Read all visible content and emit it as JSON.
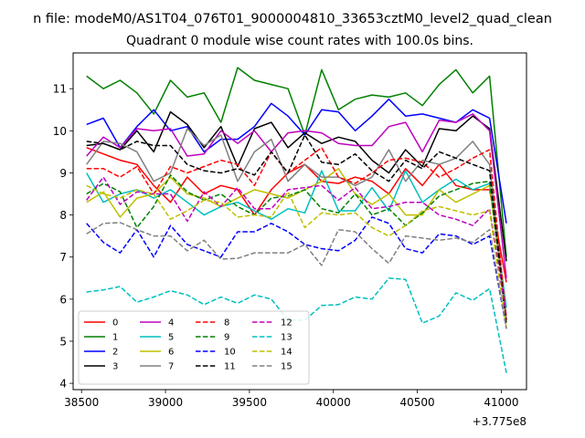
{
  "chart_data": {
    "type": "line",
    "suptitle": "n file: modeM0/AS1T04_076T01_9000004810_33653cztM0_level2_quad_clean",
    "title": "Quadrant 0 module wise count rates with 100.0s bins.",
    "xlabel": "",
    "ylabel": "",
    "x_offset_label": "+3.775e8",
    "xlim": [
      38450,
      41150
    ],
    "ylim": [
      3.85,
      11.85
    ],
    "xticks": [
      38500,
      39000,
      39500,
      40000,
      40500,
      41000
    ],
    "yticks": [
      4,
      5,
      6,
      7,
      8,
      9,
      10,
      11
    ],
    "grid": false,
    "legend_position": "lower-left",
    "x": [
      38530,
      38630,
      38730,
      38830,
      38930,
      39030,
      39130,
      39230,
      39330,
      39430,
      39530,
      39630,
      39730,
      39830,
      39930,
      40030,
      40130,
      40230,
      40330,
      40430,
      40530,
      40630,
      40730,
      40830,
      40930,
      41030
    ],
    "series": [
      {
        "name": "0",
        "color": "#ff0000",
        "style": "solid",
        "values": [
          9.6,
          9.45,
          9.3,
          9.2,
          8.7,
          8.3,
          8.9,
          8.5,
          8.7,
          8.6,
          8.0,
          8.6,
          9.0,
          9.2,
          8.8,
          8.75,
          8.9,
          8.8,
          8.5,
          9.1,
          8.7,
          9.2,
          8.7,
          8.6,
          8.6,
          6.4
        ]
      },
      {
        "name": "1",
        "color": "#008000",
        "style": "solid",
        "values": [
          11.3,
          11.0,
          11.2,
          10.9,
          10.4,
          11.2,
          10.8,
          10.9,
          10.2,
          11.5,
          11.2,
          11.1,
          11.0,
          9.9,
          11.45,
          10.5,
          10.75,
          10.85,
          10.8,
          10.9,
          10.6,
          11.1,
          11.45,
          10.9,
          11.3,
          7.0
        ]
      },
      {
        "name": "2",
        "color": "#0000ff",
        "style": "solid",
        "values": [
          10.15,
          10.3,
          9.6,
          10.1,
          10.5,
          10.0,
          10.1,
          9.5,
          9.8,
          9.8,
          10.1,
          10.65,
          10.35,
          9.9,
          10.5,
          10.45,
          10.0,
          10.35,
          10.75,
          10.35,
          10.4,
          10.3,
          10.2,
          10.5,
          10.3,
          7.8
        ]
      },
      {
        "name": "3",
        "color": "#000000",
        "style": "solid",
        "values": [
          9.65,
          9.7,
          9.55,
          10.0,
          9.5,
          10.45,
          10.15,
          9.6,
          10.1,
          9.15,
          10.05,
          10.2,
          9.6,
          9.95,
          9.7,
          9.85,
          9.75,
          9.3,
          9.0,
          9.55,
          9.15,
          10.05,
          10.0,
          10.35,
          10.05,
          6.9
        ]
      },
      {
        "name": "4",
        "color": "#bf00bf",
        "style": "solid",
        "values": [
          9.4,
          9.85,
          9.6,
          10.05,
          10.0,
          10.05,
          9.4,
          9.45,
          10.0,
          9.7,
          10.0,
          9.5,
          9.95,
          10.0,
          9.95,
          9.7,
          9.65,
          9.65,
          10.1,
          10.2,
          9.5,
          10.25,
          10.2,
          10.4,
          10.0,
          6.5
        ]
      },
      {
        "name": "5",
        "color": "#00bfbf",
        "style": "solid",
        "values": [
          9.0,
          8.3,
          8.5,
          8.6,
          8.4,
          8.6,
          8.3,
          8.0,
          8.2,
          8.3,
          8.1,
          7.9,
          8.15,
          8.05,
          9.05,
          8.1,
          8.1,
          8.65,
          8.1,
          9.05,
          8.3,
          8.6,
          8.85,
          8.6,
          8.75,
          5.8
        ]
      },
      {
        "name": "6",
        "color": "#bfbf00",
        "style": "solid",
        "values": [
          8.3,
          8.55,
          7.95,
          8.4,
          8.5,
          8.9,
          8.5,
          8.4,
          8.2,
          8.4,
          8.6,
          8.5,
          8.4,
          8.6,
          8.8,
          9.1,
          8.5,
          8.25,
          8.5,
          8.0,
          8.0,
          8.6,
          8.3,
          8.5,
          8.7,
          5.6
        ]
      },
      {
        "name": "7",
        "color": "#808080",
        "style": "solid",
        "values": [
          9.2,
          9.75,
          9.7,
          9.5,
          8.8,
          9.0,
          10.05,
          9.65,
          9.9,
          8.8,
          9.5,
          9.8,
          8.8,
          9.2,
          8.9,
          8.9,
          8.7,
          8.9,
          9.55,
          8.8,
          9.3,
          9.2,
          9.35,
          9.75,
          9.2,
          5.5
        ]
      },
      {
        "name": "8",
        "color": "#ff0000",
        "style": "dashed",
        "values": [
          9.1,
          9.1,
          8.9,
          9.15,
          8.5,
          9.15,
          9.0,
          9.15,
          9.3,
          9.2,
          8.7,
          9.5,
          9.0,
          9.3,
          9.6,
          8.9,
          8.75,
          9.0,
          9.3,
          9.35,
          9.25,
          8.9,
          9.1,
          9.35,
          9.55,
          5.5
        ]
      },
      {
        "name": "9",
        "color": "#008000",
        "style": "dashed",
        "values": [
          8.5,
          8.75,
          8.55,
          7.7,
          8.2,
          8.95,
          8.55,
          8.35,
          8.5,
          8.2,
          8.0,
          8.4,
          8.45,
          8.6,
          8.15,
          8.05,
          8.5,
          8.0,
          8.15,
          7.75,
          8.05,
          8.45,
          8.6,
          8.75,
          8.8,
          5.4
        ]
      },
      {
        "name": "10",
        "color": "#0000ff",
        "style": "dashed",
        "values": [
          7.8,
          7.35,
          7.1,
          7.65,
          7.0,
          7.75,
          7.3,
          7.15,
          7.0,
          7.6,
          7.6,
          7.8,
          7.6,
          7.3,
          7.2,
          7.15,
          7.4,
          7.95,
          7.8,
          7.2,
          7.1,
          7.55,
          7.5,
          7.3,
          7.5,
          5.3
        ]
      },
      {
        "name": "11",
        "color": "#000000",
        "style": "dashed",
        "values": [
          9.75,
          9.7,
          9.55,
          9.75,
          9.65,
          9.65,
          9.2,
          9.05,
          9.0,
          9.1,
          8.95,
          9.5,
          9.0,
          9.9,
          9.25,
          9.2,
          9.45,
          9.05,
          8.8,
          9.3,
          9.1,
          9.5,
          9.35,
          9.2,
          9.05,
          5.4
        ]
      },
      {
        "name": "12",
        "color": "#bf00bf",
        "style": "dashed",
        "values": [
          8.35,
          8.9,
          8.25,
          8.55,
          8.5,
          8.5,
          7.85,
          8.55,
          8.2,
          8.65,
          8.15,
          8.15,
          8.6,
          8.65,
          8.7,
          8.35,
          8.65,
          8.15,
          8.2,
          8.3,
          8.3,
          8.0,
          7.9,
          7.75,
          8.15,
          5.6
        ]
      },
      {
        "name": "13",
        "color": "#00bfbf",
        "style": "dashed",
        "values": [
          6.17,
          6.22,
          6.3,
          5.93,
          6.05,
          6.2,
          6.1,
          5.87,
          6.05,
          5.9,
          6.1,
          6.0,
          5.5,
          5.5,
          5.85,
          5.87,
          6.05,
          6.0,
          6.5,
          6.47,
          5.43,
          5.6,
          6.15,
          5.97,
          6.25,
          4.25
        ]
      },
      {
        "name": "14",
        "color": "#bfbf00",
        "style": "dashed",
        "values": [
          8.7,
          8.5,
          8.4,
          8.6,
          8.5,
          7.9,
          8.1,
          8.35,
          8.3,
          7.95,
          8.0,
          7.95,
          8.55,
          7.7,
          8.05,
          8.0,
          8.05,
          7.7,
          7.5,
          7.75,
          8.1,
          8.2,
          8.1,
          8.0,
          8.1,
          5.3
        ]
      },
      {
        "name": "15",
        "color": "#808080",
        "style": "dashed",
        "values": [
          7.55,
          7.8,
          7.82,
          7.65,
          7.5,
          7.5,
          7.15,
          7.4,
          6.95,
          6.97,
          7.1,
          7.1,
          7.1,
          7.3,
          6.8,
          7.65,
          7.6,
          7.2,
          6.85,
          7.5,
          7.45,
          7.4,
          7.45,
          7.35,
          7.65,
          5.3
        ]
      }
    ]
  }
}
